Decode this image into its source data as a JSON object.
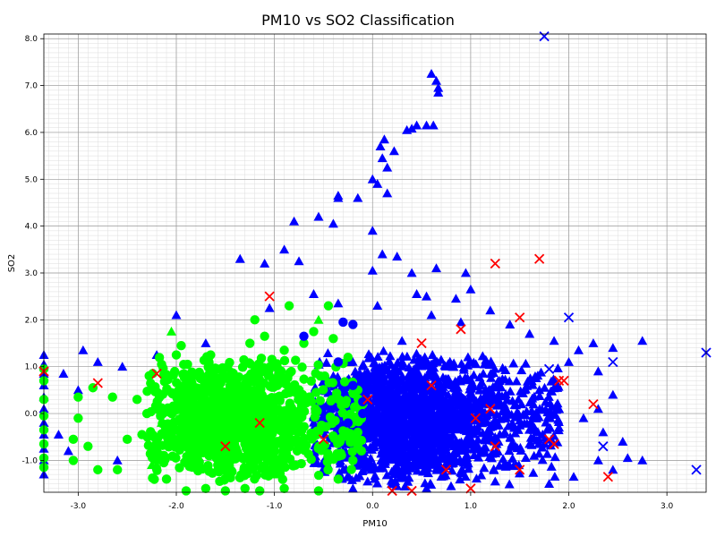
{
  "chart_data": {
    "type": "scatter",
    "title": "PM10 vs SO2 Classification",
    "xlabel": "PM10",
    "ylabel": "SO2",
    "xlim": [
      -3.35,
      3.4
    ],
    "ylim": [
      -1.68,
      8.1
    ],
    "x_ticks": [
      -3.0,
      -2.0,
      -1.0,
      0.0,
      1.0,
      2.0,
      3.0
    ],
    "x_tick_labels": [
      "-3.0",
      "-2.0",
      "-1.0",
      "0.0",
      "1.0",
      "2.0",
      "3.0"
    ],
    "y_ticks": [
      -1.0,
      0.0,
      1.0,
      2.0,
      3.0,
      4.0,
      5.0,
      6.0,
      7.0,
      8.0
    ],
    "y_tick_labels": [
      "-1.0",
      "0.0",
      "1.0",
      "2.0",
      "3.0",
      "4.0",
      "5.0",
      "6.0",
      "7.0",
      "8.0"
    ],
    "grid": true,
    "minor_grid": true,
    "legend": "none",
    "series": [
      {
        "marker": "triangle",
        "color": "#0000ff",
        "points": [
          [
            0.6,
            7.25
          ],
          [
            0.65,
            7.1
          ],
          [
            0.67,
            6.95
          ],
          [
            0.67,
            6.85
          ],
          [
            0.45,
            6.15
          ],
          [
            0.55,
            6.15
          ],
          [
            0.62,
            6.15
          ],
          [
            0.35,
            6.05
          ],
          [
            0.4,
            6.08
          ],
          [
            0.12,
            5.85
          ],
          [
            0.08,
            5.7
          ],
          [
            0.22,
            5.6
          ],
          [
            0.1,
            5.45
          ],
          [
            0.15,
            5.25
          ],
          [
            0.0,
            5.0
          ],
          [
            0.05,
            4.9
          ],
          [
            -0.35,
            4.6
          ],
          [
            -0.35,
            4.65
          ],
          [
            0.15,
            4.7
          ],
          [
            -0.15,
            4.6
          ],
          [
            -0.8,
            4.1
          ],
          [
            -0.55,
            4.2
          ],
          [
            -0.4,
            4.05
          ],
          [
            0.0,
            3.9
          ],
          [
            -0.9,
            3.5
          ],
          [
            -1.35,
            3.3
          ],
          [
            -1.1,
            3.2
          ],
          [
            -0.75,
            3.25
          ],
          [
            0.1,
            3.4
          ],
          [
            0.25,
            3.35
          ],
          [
            0.0,
            3.05
          ],
          [
            0.4,
            3.0
          ],
          [
            0.65,
            3.1
          ],
          [
            0.95,
            3.0
          ],
          [
            1.0,
            2.65
          ],
          [
            0.45,
            2.55
          ],
          [
            0.55,
            2.5
          ],
          [
            0.85,
            2.45
          ],
          [
            1.2,
            2.2
          ],
          [
            -1.05,
            2.25
          ],
          [
            -0.6,
            2.55
          ],
          [
            -0.35,
            2.35
          ],
          [
            0.05,
            2.3
          ],
          [
            0.6,
            2.1
          ],
          [
            1.4,
            1.9
          ],
          [
            1.6,
            1.7
          ],
          [
            1.85,
            1.55
          ],
          [
            2.1,
            1.35
          ],
          [
            2.25,
            1.5
          ],
          [
            2.45,
            1.4
          ],
          [
            2.75,
            1.55
          ],
          [
            2.0,
            1.1
          ],
          [
            2.3,
            0.9
          ],
          [
            2.45,
            0.4
          ],
          [
            2.3,
            0.1
          ],
          [
            2.15,
            -0.1
          ],
          [
            2.35,
            -0.4
          ],
          [
            2.55,
            -0.6
          ],
          [
            2.6,
            -0.95
          ],
          [
            2.75,
            -1.0
          ],
          [
            2.3,
            -1.0
          ],
          [
            2.05,
            -1.35
          ],
          [
            1.8,
            -1.5
          ],
          [
            1.6,
            -0.65
          ],
          [
            1.5,
            -0.15
          ],
          [
            1.3,
            0.2
          ],
          [
            1.1,
            0.6
          ],
          [
            -2.0,
            2.1
          ],
          [
            -2.2,
            1.25
          ],
          [
            -2.55,
            1.0
          ],
          [
            -2.8,
            1.1
          ],
          [
            -2.95,
            1.35
          ],
          [
            -3.15,
            0.85
          ],
          [
            -3.0,
            0.5
          ],
          [
            -3.35,
            1.25
          ],
          [
            -3.35,
            1.05
          ],
          [
            -3.35,
            0.85
          ],
          [
            -3.35,
            0.6
          ],
          [
            -3.35,
            0.35
          ],
          [
            -3.35,
            0.1
          ],
          [
            -3.35,
            -0.2
          ],
          [
            -3.35,
            -0.45
          ],
          [
            -3.35,
            -0.75
          ],
          [
            -3.35,
            -1.0
          ],
          [
            -3.35,
            -1.3
          ],
          [
            -3.1,
            -0.8
          ],
          [
            -3.2,
            -0.45
          ],
          [
            -2.6,
            -1.0
          ],
          [
            -1.7,
            1.5
          ],
          [
            -0.4,
            0.8
          ],
          [
            -0.3,
            0.3
          ],
          [
            -0.3,
            -0.4
          ],
          [
            -0.3,
            -1.2
          ],
          [
            -0.2,
            -1.6
          ],
          [
            0.3,
            1.55
          ],
          [
            0.9,
            1.95
          ],
          [
            1.7,
            0.5
          ],
          [
            1.9,
            -0.3
          ],
          [
            2.45,
            -1.2
          ],
          [
            1.25,
            -1.45
          ],
          [
            0.8,
            -1.55
          ],
          [
            0.55,
            -1.6
          ],
          [
            0.25,
            -1.55
          ],
          [
            -0.05,
            -1.45
          ]
        ],
        "cluster": {
          "x_range": [
            -0.6,
            1.9
          ],
          "y_range": [
            -1.6,
            1.4
          ],
          "count": 1800,
          "density_peak_x": 0.4
        }
      },
      {
        "marker": "circle",
        "color": "#00ff00",
        "points": [
          [
            -1.2,
            2.0
          ],
          [
            -1.1,
            1.65
          ],
          [
            -1.25,
            1.5
          ],
          [
            -0.85,
            2.3
          ],
          [
            -0.45,
            2.3
          ],
          [
            -3.35,
            0.95
          ],
          [
            -3.35,
            0.7
          ],
          [
            -3.35,
            0.3
          ],
          [
            -3.35,
            -0.05
          ],
          [
            -3.35,
            -0.35
          ],
          [
            -3.35,
            -0.65
          ],
          [
            -3.35,
            -0.95
          ],
          [
            -3.35,
            -1.15
          ],
          [
            -3.0,
            0.35
          ],
          [
            -3.0,
            -0.1
          ],
          [
            -3.05,
            -0.55
          ],
          [
            -3.05,
            -1.0
          ],
          [
            -2.9,
            -0.7
          ],
          [
            -2.85,
            0.55
          ],
          [
            -2.8,
            -1.2
          ],
          [
            -2.65,
            0.35
          ],
          [
            -2.5,
            -0.55
          ],
          [
            -2.6,
            -1.2
          ],
          [
            -2.4,
            0.3
          ],
          [
            -2.3,
            0.0
          ],
          [
            -2.35,
            -0.45
          ],
          [
            -2.2,
            -1.0
          ],
          [
            -2.1,
            -1.4
          ],
          [
            -1.9,
            -1.65
          ],
          [
            -1.7,
            -1.6
          ],
          [
            -1.5,
            -1.65
          ],
          [
            -1.3,
            -1.6
          ],
          [
            -1.15,
            -1.65
          ],
          [
            -0.9,
            -1.6
          ],
          [
            -0.55,
            -1.65
          ],
          [
            -0.35,
            -1.4
          ],
          [
            -0.2,
            -1.0
          ],
          [
            -0.15,
            -0.4
          ],
          [
            -0.15,
            0.5
          ],
          [
            -0.25,
            1.2
          ],
          [
            -0.4,
            1.6
          ],
          [
            -0.6,
            1.75
          ],
          [
            -0.7,
            1.5
          ],
          [
            -0.9,
            1.35
          ],
          [
            -2.0,
            1.25
          ],
          [
            -2.15,
            1.05
          ],
          [
            -1.95,
            1.45
          ],
          [
            -1.65,
            1.25
          ]
        ],
        "cluster": {
          "x_range": [
            -2.3,
            -0.1
          ],
          "y_range": [
            -1.5,
            1.3
          ],
          "count": 1100,
          "density_peak_x": -1.4
        }
      },
      {
        "marker": "triangle",
        "color": "#00ff00",
        "points": [
          [
            -2.05,
            1.75
          ],
          [
            -0.55,
            2.0
          ],
          [
            -0.95,
            1.0
          ],
          [
            -1.85,
            0.5
          ],
          [
            -2.15,
            -0.2
          ],
          [
            -0.5,
            -0.3
          ],
          [
            -1.0,
            -1.3
          ],
          [
            -2.25,
            -1.1
          ],
          [
            -0.75,
            0.35
          ],
          [
            -1.45,
            0.9
          ]
        ]
      },
      {
        "marker": "circle",
        "color": "#0000ff",
        "points": [
          [
            -0.3,
            1.95
          ],
          [
            -0.2,
            1.9
          ],
          [
            -0.7,
            1.65
          ],
          [
            -0.35,
            1.1
          ],
          [
            -0.2,
            0.6
          ],
          [
            -0.1,
            0.25
          ],
          [
            -0.25,
            -0.2
          ],
          [
            -0.1,
            0.0
          ]
        ]
      },
      {
        "marker": "x",
        "color": "#ff0000",
        "points": [
          [
            -1.05,
            2.5
          ],
          [
            1.25,
            3.2
          ],
          [
            1.7,
            3.3
          ],
          [
            1.5,
            2.05
          ],
          [
            0.9,
            1.8
          ],
          [
            0.5,
            1.5
          ],
          [
            -2.8,
            0.65
          ],
          [
            -2.2,
            0.85
          ],
          [
            -3.35,
            0.9
          ],
          [
            1.9,
            0.7
          ],
          [
            1.95,
            0.7
          ],
          [
            2.25,
            0.2
          ],
          [
            1.8,
            -0.55
          ],
          [
            1.85,
            -0.65
          ],
          [
            1.25,
            -0.7
          ],
          [
            1.5,
            -1.2
          ],
          [
            2.4,
            -1.35
          ],
          [
            0.75,
            -1.2
          ],
          [
            1.0,
            -1.6
          ],
          [
            0.2,
            -1.65
          ],
          [
            0.4,
            -1.65
          ],
          [
            1.05,
            -0.1
          ],
          [
            1.2,
            0.1
          ],
          [
            0.6,
            0.6
          ],
          [
            -0.05,
            0.3
          ],
          [
            -1.15,
            -0.2
          ],
          [
            -1.5,
            -0.7
          ],
          [
            -0.5,
            -0.55
          ]
        ]
      },
      {
        "marker": "x",
        "color": "#0000ff",
        "points": [
          [
            1.75,
            8.05
          ],
          [
            2.0,
            2.05
          ],
          [
            3.4,
            1.3
          ],
          [
            2.45,
            1.1
          ],
          [
            2.35,
            -0.7
          ],
          [
            3.3,
            -1.2
          ],
          [
            1.8,
            0.95
          ]
        ]
      }
    ]
  }
}
